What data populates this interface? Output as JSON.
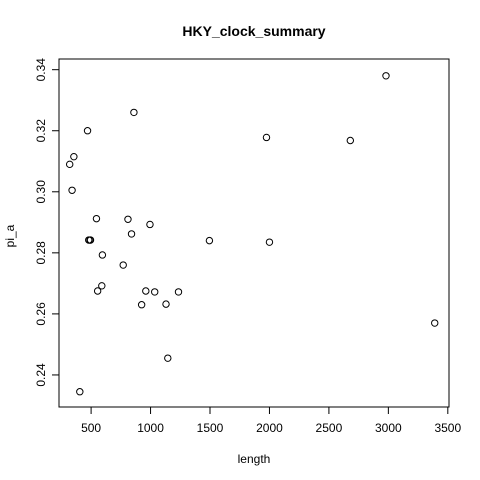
{
  "chart_data": {
    "type": "scatter",
    "title": "HKY_clock_summary",
    "xlabel": "length",
    "ylabel": "pi_a",
    "xlim": [
      230,
      3510
    ],
    "ylim": [
      0.2295,
      0.3435
    ],
    "xticks": [
      500,
      1000,
      1500,
      2000,
      2500,
      3000,
      3500
    ],
    "yticks": [
      0.24,
      0.26,
      0.28,
      0.3,
      0.32,
      0.34
    ],
    "ytick_labels": [
      "0.24",
      "0.26",
      "0.28",
      "0.30",
      "0.32",
      "0.34"
    ],
    "grid": false,
    "marker": "open-circle",
    "points": [
      {
        "x": 320,
        "y": 0.309
      },
      {
        "x": 340,
        "y": 0.3005
      },
      {
        "x": 355,
        "y": 0.3115
      },
      {
        "x": 405,
        "y": 0.2345
      },
      {
        "x": 470,
        "y": 0.32
      },
      {
        "x": 480,
        "y": 0.2842
      },
      {
        "x": 490,
        "y": 0.2842
      },
      {
        "x": 495,
        "y": 0.2842
      },
      {
        "x": 545,
        "y": 0.2912
      },
      {
        "x": 555,
        "y": 0.2675
      },
      {
        "x": 590,
        "y": 0.2692
      },
      {
        "x": 595,
        "y": 0.2793
      },
      {
        "x": 770,
        "y": 0.276
      },
      {
        "x": 810,
        "y": 0.291
      },
      {
        "x": 840,
        "y": 0.2862
      },
      {
        "x": 860,
        "y": 0.326
      },
      {
        "x": 925,
        "y": 0.263
      },
      {
        "x": 960,
        "y": 0.2675
      },
      {
        "x": 995,
        "y": 0.2893
      },
      {
        "x": 1035,
        "y": 0.2672
      },
      {
        "x": 1130,
        "y": 0.2632
      },
      {
        "x": 1145,
        "y": 0.2455
      },
      {
        "x": 1235,
        "y": 0.2672
      },
      {
        "x": 1495,
        "y": 0.284
      },
      {
        "x": 1975,
        "y": 0.3178
      },
      {
        "x": 2000,
        "y": 0.2835
      },
      {
        "x": 2680,
        "y": 0.3168
      },
      {
        "x": 2980,
        "y": 0.338
      },
      {
        "x": 3390,
        "y": 0.257
      }
    ]
  }
}
